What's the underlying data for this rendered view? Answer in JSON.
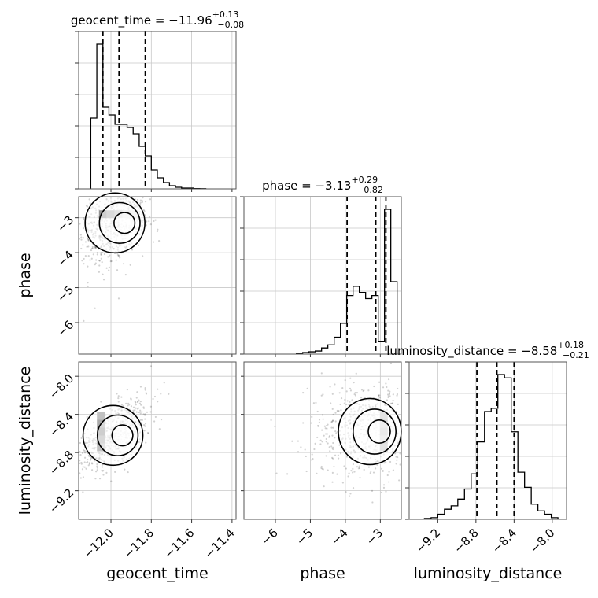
{
  "chart_data": {
    "type": "scatter",
    "parameters": [
      "geocent_time",
      "phase",
      "luminosity_distance"
    ],
    "titles": [
      {
        "param": "geocent_time",
        "label": "geocent_time = ",
        "median": "−11.96",
        "plus": "+0.13",
        "minus": "−0.08"
      },
      {
        "param": "phase",
        "label": "phase = ",
        "median": "−3.13",
        "plus": "+0.29",
        "minus": "−0.82"
      },
      {
        "param": "luminosity_distance",
        "label": "luminosity_distance = ",
        "median": "−8.58",
        "plus": "+0.18",
        "minus": "−0.21"
      }
    ],
    "axes": {
      "geocent_time": {
        "range": [
          -12.16,
          -11.38
        ],
        "ticks": [
          -12.0,
          -11.8,
          -11.6,
          -11.4
        ],
        "tick_labels": [
          "−12.0",
          "−11.8",
          "−11.6",
          "−11.4"
        ],
        "label": "geocent_time"
      },
      "phase": {
        "range": [
          -6.9,
          -2.4
        ],
        "ticks": [
          -6,
          -5,
          -4,
          -3
        ],
        "tick_labels": [
          "−6",
          "−5",
          "−4",
          "−3"
        ],
        "label": "phase"
      },
      "luminosity_distance": {
        "range": [
          -9.5,
          -7.85
        ],
        "ticks": [
          -9.2,
          -8.8,
          -8.4,
          -8.0
        ],
        "tick_labels": [
          "−9.2",
          "−8.8",
          "−8.4",
          "−8.0"
        ],
        "label": "luminosity_distance"
      }
    },
    "quantiles": {
      "geocent_time": [
        -12.04,
        -11.96,
        -11.83
      ],
      "phase": [
        -3.95,
        -3.13,
        -2.84
      ],
      "luminosity_distance": [
        -8.79,
        -8.58,
        -8.4
      ]
    },
    "histograms": {
      "geocent_time": {
        "edges": [
          -12.1,
          -12.07,
          -12.04,
          -12.01,
          -11.98,
          -11.95,
          -11.92,
          -11.89,
          -11.86,
          -11.83,
          -11.8,
          -11.77,
          -11.74,
          -11.71,
          -11.68,
          -11.65,
          -11.62,
          -11.59,
          -11.56,
          -11.53
        ],
        "counts": [
          0.45,
          0.92,
          0.52,
          0.47,
          0.41,
          0.41,
          0.39,
          0.35,
          0.27,
          0.21,
          0.12,
          0.07,
          0.04,
          0.02,
          0.01,
          0.005,
          0.005,
          0.002,
          0.001
        ]
      },
      "phase": {
        "edges": [
          -5.4,
          -5.22,
          -5.04,
          -4.86,
          -4.68,
          -4.5,
          -4.32,
          -4.14,
          -3.96,
          -3.78,
          -3.6,
          -3.42,
          -3.24,
          -3.06,
          -2.88,
          -2.7,
          -2.52
        ],
        "counts": [
          0.005,
          0.01,
          0.015,
          0.02,
          0.04,
          0.06,
          0.11,
          0.2,
          0.38,
          0.44,
          0.4,
          0.36,
          0.38,
          0.08,
          0.94,
          0.47
        ]
      },
      "luminosity_distance": {
        "edges": [
          -9.34,
          -9.27,
          -9.2,
          -9.13,
          -9.06,
          -8.99,
          -8.92,
          -8.85,
          -8.78,
          -8.71,
          -8.64,
          -8.57,
          -8.5,
          -8.43,
          -8.36,
          -8.29,
          -8.22,
          -8.15,
          -8.08,
          -8.01,
          -7.94
        ],
        "counts": [
          0.005,
          0.01,
          0.03,
          0.06,
          0.08,
          0.12,
          0.18,
          0.27,
          0.46,
          0.64,
          0.66,
          0.86,
          0.84,
          0.52,
          0.28,
          0.19,
          0.09,
          0.05,
          0.03,
          0.01
        ]
      }
    },
    "joint": {
      "geocent_time|phase": {
        "center_x": -11.98,
        "center_y": -3.15,
        "peak": [
          -12.04,
          -2.9
        ]
      },
      "geocent_time|luminosity_distance": {
        "center_x": -11.99,
        "center_y": -8.62,
        "peak": [
          -12.05,
          -8.58
        ]
      },
      "phase|luminosity_distance": {
        "center_x": -3.3,
        "center_y": -8.58,
        "peak": [
          -2.9,
          -8.58
        ]
      }
    },
    "grid": true
  }
}
